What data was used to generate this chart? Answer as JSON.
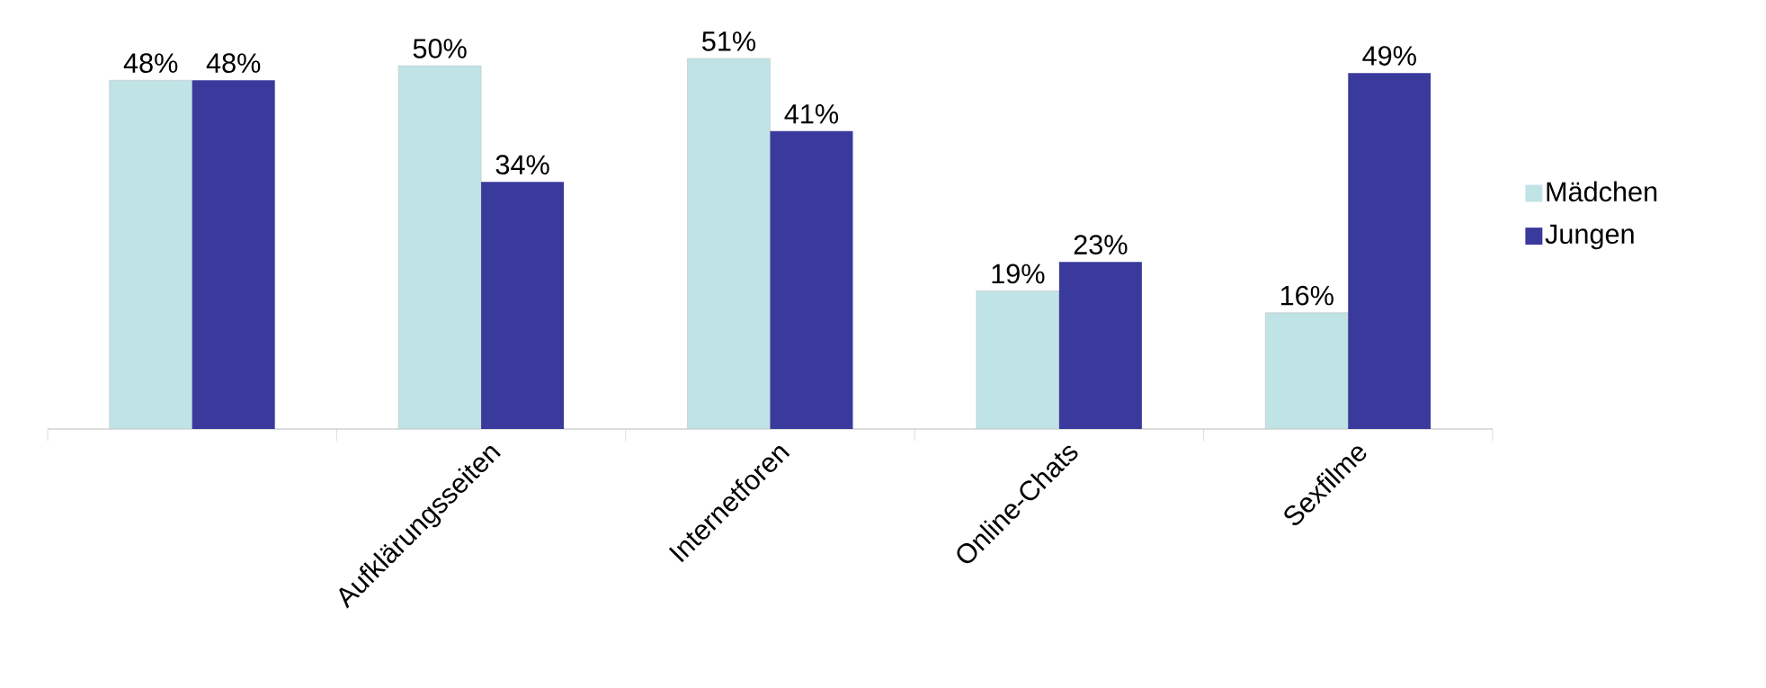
{
  "chart_data": {
    "type": "bar",
    "categories": [
      null,
      "Aufklärungsseiten",
      "Internetforen",
      "Online-Chats",
      "Sexfilme"
    ],
    "series": [
      {
        "name": "Mädchen",
        "color": "#c0e3e5",
        "values": [
          48,
          50,
          51,
          19,
          16
        ],
        "value_labels": [
          "48%",
          "50%",
          "51%",
          "19%",
          "16%"
        ]
      },
      {
        "name": "Jungen",
        "color": "#3a3a9c",
        "values": [
          48,
          34,
          41,
          23,
          49
        ],
        "value_labels": [
          "48%",
          "34%",
          "41%",
          "23%",
          "49%"
        ]
      }
    ],
    "grid": false,
    "legend": "right"
  }
}
